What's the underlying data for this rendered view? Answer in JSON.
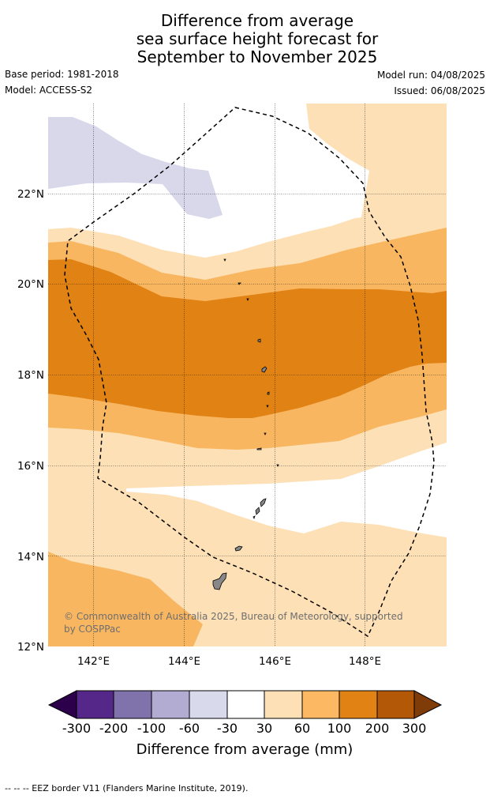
{
  "title": {
    "line1": "Difference from average",
    "line2": "sea surface height forecast for",
    "line3": "September to November 2025"
  },
  "meta": {
    "base_period": "Base period: 1981-2018",
    "model": "Model: ACCESS-S2",
    "model_run": "Model run: 04/08/2025",
    "issued": "Issued: 06/08/2025"
  },
  "map": {
    "lat_labels": [
      "22°N",
      "20°N",
      "18°N",
      "16°N",
      "14°N",
      "12°N"
    ],
    "lon_labels": [
      "142°E",
      "144°E",
      "146°E",
      "148°E"
    ],
    "credit_line1": "© Commonwealth of Australia 2025, Bureau of Meteorology, supported",
    "credit_line2": "by COSPPac",
    "fill_colors": {
      "neg_30_60": "#d8d8ea",
      "pos_30_60": "#fde0b6",
      "pos_60_100": "#f9b660",
      "pos_100_200": "#e08214"
    },
    "land_color": "#888888",
    "eez_border": "dashed"
  },
  "colorbar": {
    "ticks": [
      "-300",
      "-200",
      "-100",
      "-60",
      "-30",
      "30",
      "60",
      "100",
      "200",
      "300"
    ],
    "colors": [
      "#2d004b",
      "#542788",
      "#8073ac",
      "#b2abd2",
      "#d8daeb",
      "#ffffff",
      "#fee0b6",
      "#fdb863",
      "#e08214",
      "#b35806",
      "#7f3b08"
    ],
    "label": "Difference from average (mm)"
  },
  "footer": "--  --  -- EEZ border V11 (Flanders Marine Institute, 2019)."
}
